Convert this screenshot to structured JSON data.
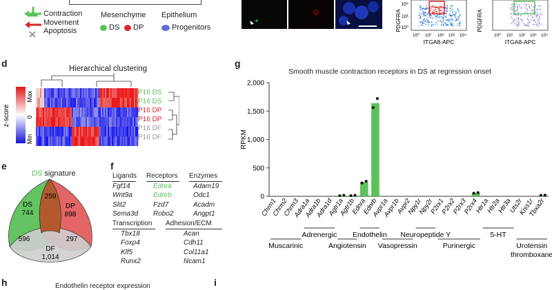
{
  "legend_top": {
    "contraction": "Contraction",
    "movement": "Movement",
    "apoptosis": "Apoptosis",
    "mesenchyme": "Mesenchyme",
    "ds": "DS",
    "dp": "DP",
    "epithelium": "Epithelium",
    "progenitors": "Progenitors",
    "colors": {
      "green": "#5cc15a",
      "red": "#d8262b",
      "blue": "#5b6fe0",
      "gray": "#999999"
    }
  },
  "flow": {
    "axis_label": "ITGA8-APC",
    "y_label_cut": "PDGFRA",
    "ticks": [
      "10⁰",
      "10¹",
      "10²",
      "10³",
      "10⁴"
    ]
  },
  "panel_d": {
    "letter": "d",
    "title": "Hierarchical clustering",
    "scale_label": "z-score",
    "scale_max": "Max",
    "scale_zero": "0",
    "scale_min": "Min",
    "rows": [
      "P16 DS",
      "P16 DS",
      "P16 DP",
      "P16 DP",
      "P16 DF",
      "P16 DF"
    ]
  },
  "panel_e": {
    "letter": "e",
    "title_colored": "DS",
    "title_rest": " signature",
    "ds": {
      "label": "DS",
      "count": "744"
    },
    "dp": {
      "label": "DP",
      "count": "898"
    },
    "df": {
      "label": "DF",
      "count": "1,014"
    },
    "ds_dp": "259",
    "ds_df": "596",
    "dp_df": "297"
  },
  "panel_f": {
    "letter": "f",
    "ligands": {
      "header": "Ligands",
      "items": [
        "Fgf14",
        "Wnt9a",
        "Slit2",
        "Sema3d"
      ]
    },
    "receptors": {
      "header": "Receptors",
      "items": [
        "Ednra",
        "Ednrb",
        "Fzd7",
        "Robo2"
      ]
    },
    "enzymes": {
      "header": "Enzymes",
      "items": [
        "Adam19",
        "Odc1",
        "Acadm",
        "Angpt1"
      ]
    },
    "transcription": {
      "header": "Transcription",
      "items": [
        "Tbx18",
        "Foxp4",
        "Klf5",
        "Runx2"
      ]
    },
    "adhesion": {
      "header": "Adhesion/ECM",
      "items": [
        "Acan",
        "Cdh11",
        "Col11a1",
        "Ncam1"
      ]
    }
  },
  "panel_g": {
    "letter": "g",
    "groups": [
      {
        "label": "Muscarinic"
      },
      {
        "label": "Adrenergic"
      },
      {
        "label": "Angiotensin"
      },
      {
        "label": "Endothelin"
      },
      {
        "label": "Vasopressin"
      },
      {
        "label": "Neuropeptide Y"
      },
      {
        "label": "Purinergic"
      },
      {
        "label": "5-HT"
      },
      {
        "label": "Urotensin"
      },
      {
        "label": "thromboxane"
      }
    ]
  },
  "panel_h": {
    "letter": "h",
    "title": "Endothelin receptor expression"
  },
  "panel_i": {
    "letter": "i"
  },
  "chart_data": {
    "type": "bar",
    "title": "Smooth muscle contraction receptors in DS at regression onset",
    "ylabel": "RPKM",
    "ylim": [
      0,
      2000
    ],
    "yticks": [
      "0",
      "500",
      "1,000",
      "1,500",
      "2,000"
    ],
    "ytick_values": [
      0,
      500,
      1000,
      1500,
      2000
    ],
    "categories": [
      "Chrm1",
      "Chrm2",
      "Chrm3",
      "Adra1a",
      "Adra1b",
      "Adra1d",
      "Agtr1a",
      "Agtr1b",
      "Ednra",
      "Ednrb",
      "Avpr1a",
      "Avpr1b",
      "Avpr2",
      "Npy1r",
      "Npy2r",
      "P2rx1",
      "P2rx2",
      "P2rx3",
      "P2rx4",
      "Htr1a",
      "Htr2a",
      "Htr3a",
      "Uts2r",
      "Kiss1r",
      "Tbxa2r"
    ],
    "values": [
      0,
      0,
      0,
      0,
      0,
      0,
      15,
      15,
      250,
      1640,
      0,
      0,
      0,
      0,
      0,
      0,
      0,
      0,
      60,
      0,
      0,
      0,
      0,
      0,
      20
    ],
    "points": [
      [],
      [],
      [],
      [],
      [],
      [],
      [
        12,
        18
      ],
      [
        12,
        18
      ],
      [
        235,
        265
      ],
      [
        1560,
        1720
      ],
      [],
      [],
      [],
      [],
      [],
      [],
      [],
      [],
      [
        55,
        65
      ],
      [],
      [],
      [],
      [],
      [],
      [
        18,
        22
      ]
    ],
    "bar_color": "#5cc15a",
    "grid": false
  }
}
